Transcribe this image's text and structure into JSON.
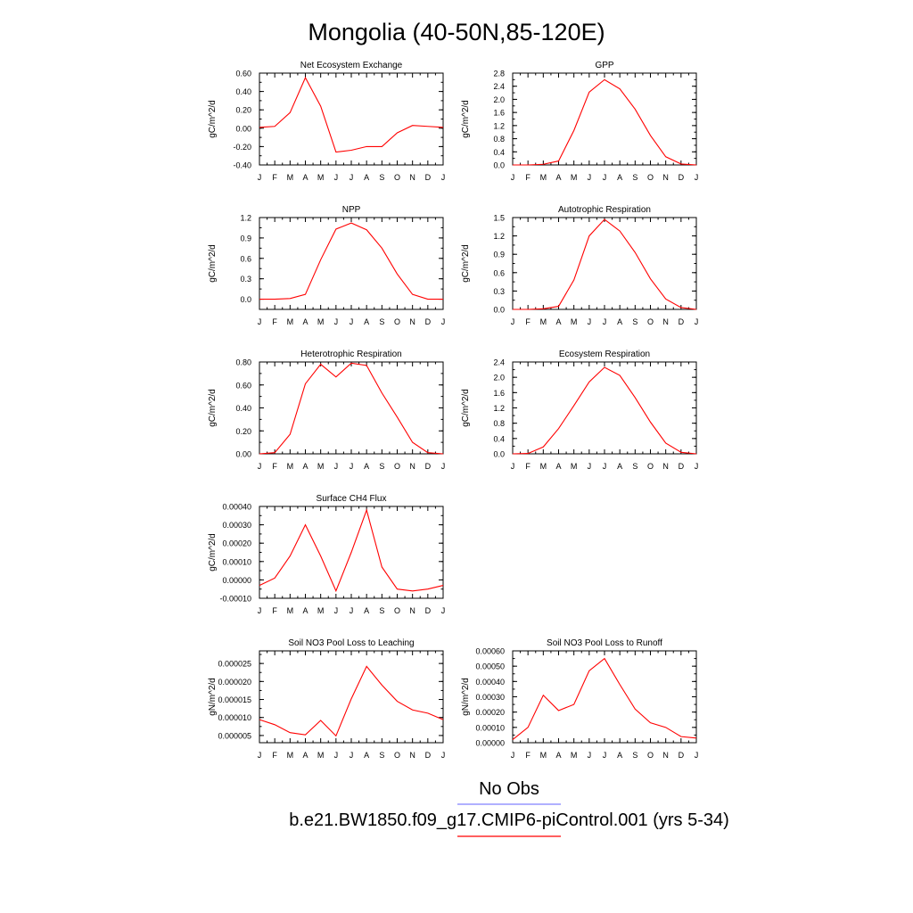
{
  "title": "Mongolia (40-50N,85-120E)",
  "legend": {
    "obs_label": "No Obs",
    "obs_color": "#8080ff",
    "model_label": "b.e21.BW1850.f09_g17.CMIP6-piControl.001 (yrs 5-34)",
    "model_color": "#ff0000"
  },
  "chart_data": [
    {
      "type": "line",
      "title": "Net Ecosystem Exchange",
      "ylabel": "gC/m^2/d",
      "xlabel": "",
      "categories": [
        "J",
        "F",
        "M",
        "A",
        "M",
        "J",
        "J",
        "A",
        "S",
        "O",
        "N",
        "D",
        "J"
      ],
      "ylim": [
        -0.4,
        0.6
      ],
      "yticks": [
        "-0.40",
        "-0.20",
        "0.00",
        "0.20",
        "0.40",
        "0.60"
      ],
      "grid": false,
      "series": [
        {
          "color": "#ff0000",
          "values": [
            0.01,
            0.02,
            0.17,
            0.55,
            0.24,
            -0.26,
            -0.24,
            -0.2,
            -0.2,
            -0.05,
            0.03,
            0.02,
            0.01
          ]
        }
      ]
    },
    {
      "type": "line",
      "title": "GPP",
      "ylabel": "gC/m^2/d",
      "xlabel": "",
      "categories": [
        "J",
        "F",
        "M",
        "A",
        "M",
        "J",
        "J",
        "A",
        "S",
        "O",
        "N",
        "D",
        "J"
      ],
      "ylim": [
        0.0,
        2.8
      ],
      "yticks": [
        "0.0",
        "0.4",
        "0.8",
        "1.2",
        "1.6",
        "2.0",
        "2.4",
        "2.8"
      ],
      "grid": false,
      "series": [
        {
          "color": "#ff0000",
          "values": [
            0.0,
            0.0,
            0.02,
            0.12,
            1.05,
            2.22,
            2.6,
            2.32,
            1.7,
            0.9,
            0.25,
            0.03,
            0.0
          ]
        }
      ]
    },
    {
      "type": "line",
      "title": "NPP",
      "ylabel": "gC/m^2/d",
      "xlabel": "",
      "categories": [
        "J",
        "F",
        "M",
        "A",
        "M",
        "J",
        "J",
        "A",
        "S",
        "O",
        "N",
        "D",
        "J"
      ],
      "ylim": [
        -0.15,
        1.2
      ],
      "yticks": [
        "0.0",
        "0.3",
        "0.6",
        "0.9",
        "1.2"
      ],
      "grid": false,
      "series": [
        {
          "color": "#ff0000",
          "values": [
            0.0,
            0.0,
            0.01,
            0.07,
            0.58,
            1.03,
            1.12,
            1.02,
            0.75,
            0.37,
            0.07,
            0.0,
            0.0
          ]
        }
      ]
    },
    {
      "type": "line",
      "title": "Autotrophic Respiration",
      "ylabel": "gC/m^2/d",
      "xlabel": "",
      "categories": [
        "J",
        "F",
        "M",
        "A",
        "M",
        "J",
        "J",
        "A",
        "S",
        "O",
        "N",
        "D",
        "J"
      ],
      "ylim": [
        0.0,
        1.5
      ],
      "yticks": [
        "0.0",
        "0.3",
        "0.6",
        "0.9",
        "1.2",
        "1.5"
      ],
      "grid": false,
      "series": [
        {
          "color": "#ff0000",
          "values": [
            0.0,
            0.0,
            0.01,
            0.05,
            0.48,
            1.2,
            1.47,
            1.28,
            0.93,
            0.5,
            0.17,
            0.03,
            0.0
          ]
        }
      ]
    },
    {
      "type": "line",
      "title": "Heterotrophic Respiration",
      "ylabel": "gC/m^2/d",
      "xlabel": "",
      "categories": [
        "J",
        "F",
        "M",
        "A",
        "M",
        "J",
        "J",
        "A",
        "S",
        "O",
        "N",
        "D",
        "J"
      ],
      "ylim": [
        0.0,
        0.8
      ],
      "yticks": [
        "0.00",
        "0.20",
        "0.40",
        "0.60",
        "0.80"
      ],
      "grid": false,
      "series": [
        {
          "color": "#ff0000",
          "values": [
            0.0,
            0.01,
            0.17,
            0.61,
            0.78,
            0.67,
            0.79,
            0.77,
            0.53,
            0.32,
            0.1,
            0.01,
            0.0
          ]
        }
      ]
    },
    {
      "type": "line",
      "title": "Ecosystem Respiration",
      "ylabel": "gC/m^2/d",
      "xlabel": "",
      "categories": [
        "J",
        "F",
        "M",
        "A",
        "M",
        "J",
        "J",
        "A",
        "S",
        "O",
        "N",
        "D",
        "J"
      ],
      "ylim": [
        0.0,
        2.4
      ],
      "yticks": [
        "0.0",
        "0.4",
        "0.8",
        "1.2",
        "1.6",
        "2.0",
        "2.4"
      ],
      "grid": false,
      "series": [
        {
          "color": "#ff0000",
          "values": [
            0.0,
            0.01,
            0.18,
            0.66,
            1.26,
            1.88,
            2.26,
            2.05,
            1.47,
            0.83,
            0.28,
            0.04,
            0.0
          ]
        }
      ]
    },
    {
      "type": "line",
      "title": "Surface CH4 Flux",
      "ylabel": "gC/m^2/d",
      "xlabel": "",
      "categories": [
        "J",
        "F",
        "M",
        "A",
        "M",
        "J",
        "J",
        "A",
        "S",
        "O",
        "N",
        "D",
        "J"
      ],
      "ylim": [
        -0.0001,
        0.0004
      ],
      "yticks": [
        "-0.00010",
        "0.00000",
        "0.00010",
        "0.00020",
        "0.00030",
        "0.00040"
      ],
      "grid": false,
      "series": [
        {
          "color": "#ff0000",
          "values": [
            -3e-05,
            1e-05,
            0.00013,
            0.0003,
            0.00013,
            -6e-05,
            0.00015,
            0.00038,
            7e-05,
            -5e-05,
            -6e-05,
            -5e-05,
            -3e-05
          ]
        }
      ]
    },
    {
      "type": "line",
      "title": "Soil NO3 Pool Loss to Leaching",
      "ylabel": "gN/m^2/d",
      "xlabel": "",
      "categories": [
        "J",
        "F",
        "M",
        "A",
        "M",
        "J",
        "J",
        "A",
        "S",
        "O",
        "N",
        "D",
        "J"
      ],
      "ylim": [
        3e-06,
        2.85e-05
      ],
      "yticks": [
        "0.000005",
        "0.000010",
        "0.000015",
        "0.000020",
        "0.000025"
      ],
      "grid": false,
      "series": [
        {
          "color": "#ff0000",
          "values": [
            9.4e-06,
            8e-06,
            5.8e-06,
            5.2e-06,
            9.2e-06,
            4.9e-06,
            1.52e-05,
            2.42e-05,
            1.9e-05,
            1.45e-05,
            1.21e-05,
            1.12e-05,
            9.4e-06
          ]
        }
      ]
    },
    {
      "type": "line",
      "title": "Soil NO3 Pool Loss to Runoff",
      "ylabel": "gN/m^2/d",
      "xlabel": "",
      "categories": [
        "J",
        "F",
        "M",
        "A",
        "M",
        "J",
        "J",
        "A",
        "S",
        "O",
        "N",
        "D",
        "J"
      ],
      "ylim": [
        0.0,
        0.0006
      ],
      "yticks": [
        "0.00000",
        "0.00010",
        "0.00020",
        "0.00030",
        "0.00040",
        "0.00050",
        "0.00060"
      ],
      "grid": false,
      "series": [
        {
          "color": "#ff0000",
          "values": [
            2e-05,
            0.0001,
            0.00031,
            0.00021,
            0.00025,
            0.00047,
            0.00055,
            0.00038,
            0.00022,
            0.00013,
            0.0001,
            4e-05,
            3e-05
          ]
        }
      ]
    }
  ]
}
